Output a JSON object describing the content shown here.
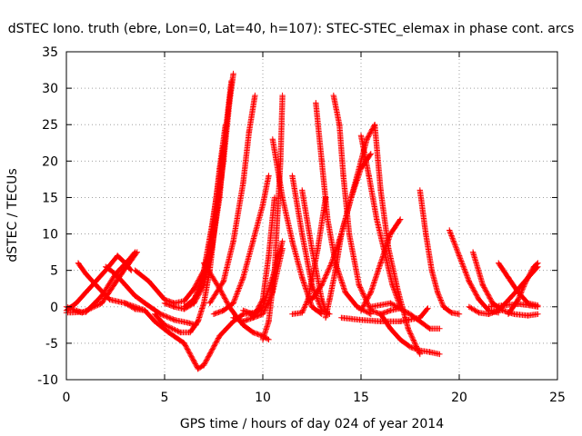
{
  "chart_data": {
    "type": "scatter",
    "title": "dSTEC Iono. truth (ebre, Lon=0, Lat=40, h=107): STEC-STEC_elemax in phase cont. arcs",
    "xlabel": "GPS time / hours of day 024 of year 2014",
    "ylabel": "dSTEC  / TECUs",
    "xlim": [
      0,
      25
    ],
    "ylim": [
      -10,
      35
    ],
    "x_ticks": [
      0,
      5,
      10,
      15,
      20,
      25
    ],
    "y_ticks": [
      -10,
      -5,
      0,
      5,
      10,
      15,
      20,
      25,
      30,
      35
    ],
    "grid": true,
    "legend": "none",
    "marker": "plus",
    "color": "#ff0000",
    "series": [
      {
        "x": [
          0.0,
          0.5,
          1.0,
          1.5,
          2.0,
          2.6,
          3.0,
          3.3
        ],
        "y": [
          -0.5,
          0.5,
          2.0,
          3.5,
          5.0,
          7.0,
          6.0,
          5.0
        ]
      },
      {
        "x": [
          0.0,
          0.8,
          1.8,
          2.8,
          3.6
        ],
        "y": [
          0.0,
          -0.8,
          0.5,
          4.5,
          7.5
        ]
      },
      {
        "x": [
          0.6,
          1.0,
          1.5,
          2.2,
          3.0,
          3.5,
          4.0
        ],
        "y": [
          6.0,
          4.5,
          3.0,
          1.0,
          0.5,
          -0.3,
          -0.5
        ]
      },
      {
        "x": [
          0.0,
          1.0,
          1.8,
          2.5,
          3.2,
          3.5
        ],
        "y": [
          -0.8,
          -0.7,
          1.5,
          4.5,
          6.5,
          7.5
        ]
      },
      {
        "x": [
          2.0,
          2.5,
          3.0,
          3.5,
          4.0,
          4.8,
          5.5,
          6.2,
          6.6
        ],
        "y": [
          5.5,
          4.5,
          3.0,
          1.5,
          0.5,
          -1.0,
          -1.8,
          -2.2,
          -2.5
        ]
      },
      {
        "x": [
          3.5,
          4.2,
          5.0,
          5.5,
          6.0,
          6.5,
          7.0,
          7.3
        ],
        "y": [
          5.0,
          3.5,
          1.0,
          0.5,
          0.8,
          2.5,
          5.0,
          7.5
        ]
      },
      {
        "x": [
          3.0,
          4.0,
          4.5,
          5.2,
          6.0,
          6.5,
          6.7,
          7.0,
          7.3,
          7.8,
          8.5,
          9.0,
          9.6,
          10.0
        ],
        "y": [
          0.5,
          -0.5,
          -2.0,
          -3.5,
          -5.0,
          -7.5,
          -8.5,
          -8.0,
          -6.5,
          -4.0,
          -2.0,
          -1.0,
          -0.8,
          -0.5
        ]
      },
      {
        "x": [
          4.5,
          5.0,
          5.8,
          6.3,
          6.7,
          7.0,
          7.3,
          7.6,
          8.0,
          8.3,
          8.5
        ],
        "y": [
          -1.0,
          -2.5,
          -3.5,
          -3.5,
          -2.0,
          0.5,
          5.0,
          12.0,
          20.0,
          28.0,
          32.0
        ]
      },
      {
        "x": [
          5.0,
          5.5,
          6.0,
          6.5,
          7.0,
          7.4,
          7.8,
          8.1,
          8.4
        ],
        "y": [
          0.5,
          0.0,
          -0.3,
          0.5,
          3.0,
          8.0,
          15.0,
          24.0,
          31.0
        ]
      },
      {
        "x": [
          6.0,
          6.5,
          7.0,
          7.5,
          7.8,
          8.1
        ],
        "y": [
          0.0,
          1.0,
          4.0,
          12.0,
          19.0,
          25.0
        ]
      },
      {
        "x": [
          6.3,
          6.6,
          7.0,
          7.4,
          7.8,
          8.0
        ],
        "y": [
          0.3,
          1.5,
          5.0,
          11.0,
          18.0,
          22.0
        ]
      },
      {
        "x": [
          7.0,
          7.8,
          8.3,
          8.7,
          9.0,
          9.5,
          10.0,
          10.3
        ],
        "y": [
          6.0,
          2.5,
          0.0,
          -1.5,
          -2.5,
          -3.5,
          -4.0,
          -4.5
        ]
      },
      {
        "x": [
          7.5,
          8.0,
          8.5,
          9.0,
          9.5,
          10.0,
          10.3
        ],
        "y": [
          -1.0,
          -0.5,
          0.5,
          4.0,
          9.0,
          14.0,
          18.0
        ]
      },
      {
        "x": [
          7.3,
          8.0,
          8.5,
          9.0,
          9.3,
          9.6
        ],
        "y": [
          0.5,
          3.5,
          9.0,
          17.0,
          24.0,
          29.0
        ]
      },
      {
        "x": [
          8.5,
          9.0,
          9.5,
          10.0,
          10.3,
          10.6
        ],
        "y": [
          -1.5,
          -2.0,
          -1.5,
          1.0,
          7.0,
          15.0
        ]
      },
      {
        "x": [
          9.0,
          9.5,
          10.0,
          10.5,
          11.0
        ],
        "y": [
          -0.5,
          -1.0,
          0.0,
          4.0,
          9.0
        ]
      },
      {
        "x": [
          9.5,
          10.0,
          10.5,
          11.0
        ],
        "y": [
          -1.5,
          -1.0,
          2.0,
          8.0
        ]
      },
      {
        "x": [
          10.0,
          10.3,
          10.6,
          10.9,
          11.0
        ],
        "y": [
          -4.5,
          -2.0,
          5.0,
          20.0,
          29.0
        ]
      },
      {
        "x": [
          10.5,
          11.0,
          11.5,
          12.0,
          12.5,
          13.0
        ],
        "y": [
          23.0,
          15.0,
          9.0,
          4.0,
          0.0,
          -1.0
        ]
      },
      {
        "x": [
          11.5,
          12.0,
          12.5,
          13.0,
          13.4
        ],
        "y": [
          18.0,
          10.0,
          3.0,
          -0.5,
          -1.0
        ]
      },
      {
        "x": [
          12.0,
          12.5,
          13.0,
          13.2
        ],
        "y": [
          16.0,
          8.0,
          1.0,
          -0.5
        ]
      },
      {
        "x": [
          11.5,
          12.0,
          12.3,
          12.8,
          13.2
        ],
        "y": [
          -1.0,
          -0.8,
          1.0,
          8.0,
          15.0
        ]
      },
      {
        "x": [
          12.7,
          13.0,
          13.3,
          13.7,
          14.2,
          14.8,
          15.5
        ],
        "y": [
          28.0,
          20.0,
          12.0,
          6.0,
          2.0,
          0.0,
          -1.0
        ]
      },
      {
        "x": [
          13.6,
          13.9,
          14.1,
          14.4,
          14.9,
          15.5,
          16.0,
          16.5,
          17.0
        ],
        "y": [
          29.0,
          25.0,
          18.0,
          10.0,
          3.0,
          -0.5,
          -1.0,
          -0.5,
          -0.2
        ]
      },
      {
        "x": [
          13.2,
          13.4,
          13.7,
          14.0,
          14.5,
          15.0,
          15.5
        ],
        "y": [
          -1.5,
          1.0,
          5.0,
          10.0,
          15.0,
          19.0,
          21.0
        ]
      },
      {
        "x": [
          12.5,
          13.0,
          13.5,
          14.0,
          14.5,
          15.0,
          15.3,
          15.7
        ],
        "y": [
          1.0,
          3.0,
          6.0,
          10.0,
          15.0,
          20.0,
          23.0,
          25.0
        ]
      },
      {
        "x": [
          15.7,
          16.0,
          16.4,
          16.9,
          17.4,
          18.0
        ],
        "y": [
          25.0,
          16.0,
          8.0,
          2.0,
          -3.0,
          -6.5
        ]
      },
      {
        "x": [
          15.0,
          15.4,
          15.8,
          16.2,
          16.6,
          17.0
        ],
        "y": [
          23.5,
          18.0,
          12.0,
          7.5,
          3.0,
          0.0
        ]
      },
      {
        "x": [
          15.0,
          15.5,
          16.0,
          16.5,
          17.0
        ],
        "y": [
          -0.5,
          2.0,
          6.0,
          10.0,
          12.0
        ]
      },
      {
        "x": [
          14.0,
          15.0,
          16.0,
          17.0,
          18.0,
          18.4
        ],
        "y": [
          -1.5,
          -1.8,
          -2.0,
          -2.0,
          -1.5,
          -0.2
        ]
      },
      {
        "x": [
          16.0,
          16.5,
          17.0,
          17.5,
          18.0,
          18.5,
          19.0
        ],
        "y": [
          -1.0,
          -3.0,
          -4.5,
          -5.5,
          -6.0,
          -6.2,
          -6.5
        ]
      },
      {
        "x": [
          18.0,
          18.3,
          18.6,
          18.9,
          19.2,
          19.6,
          20.0
        ],
        "y": [
          16.0,
          10.0,
          5.0,
          2.0,
          0.0,
          -0.8,
          -1.0
        ]
      },
      {
        "x": [
          15.5,
          16.5,
          17.5,
          18.5,
          19.0
        ],
        "y": [
          0.0,
          0.5,
          -1.0,
          -3.0,
          -3.0
        ]
      },
      {
        "x": [
          19.5,
          20.0,
          20.5,
          21.0,
          21.5,
          22.0
        ],
        "y": [
          10.5,
          7.0,
          3.5,
          1.0,
          -0.5,
          -0.8
        ]
      },
      {
        "x": [
          20.7,
          21.2,
          21.7,
          22.2,
          22.8,
          23.5,
          24.0
        ],
        "y": [
          7.5,
          3.0,
          0.5,
          -0.5,
          -1.0,
          -1.2,
          -1.0
        ]
      },
      {
        "x": [
          20.5,
          21.0,
          21.5,
          22.0,
          22.7,
          23.5,
          24.0
        ],
        "y": [
          0.0,
          -0.8,
          -1.0,
          -0.5,
          1.5,
          4.0,
          5.5
        ]
      },
      {
        "x": [
          22.0,
          22.5,
          23.0,
          23.5,
          24.0
        ],
        "y": [
          6.0,
          4.0,
          2.0,
          0.5,
          0.2
        ]
      },
      {
        "x": [
          22.5,
          23.0,
          23.4,
          23.8,
          24.0
        ],
        "y": [
          -1.0,
          1.0,
          3.5,
          5.5,
          6.0
        ]
      },
      {
        "x": [
          21.5,
          22.3,
          23.0,
          23.6,
          24.0
        ],
        "y": [
          0.0,
          0.2,
          0.4,
          0.2,
          0.0
        ]
      }
    ]
  }
}
